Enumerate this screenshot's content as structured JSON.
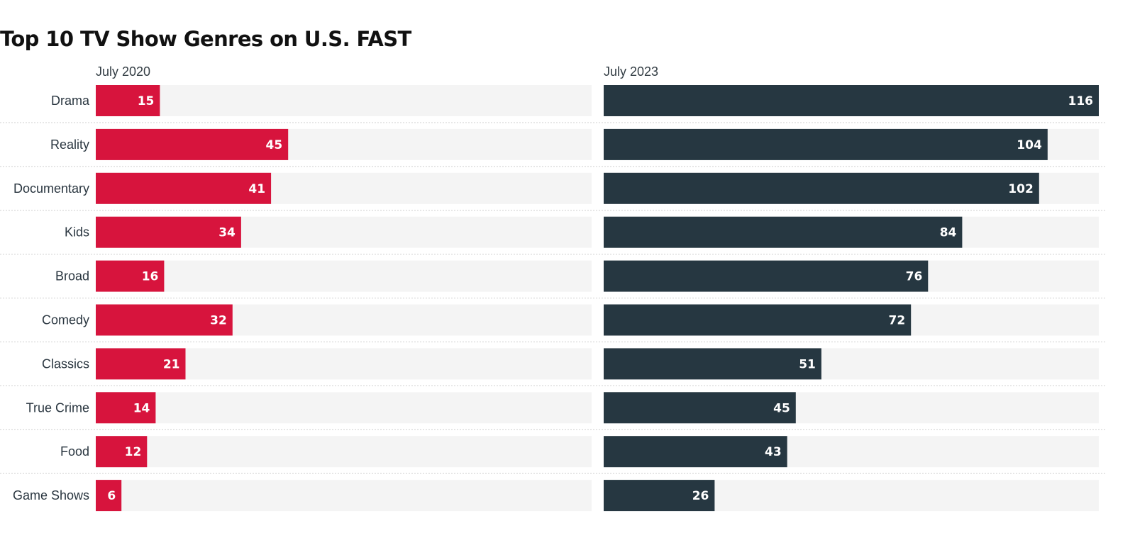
{
  "chart_data": {
    "type": "bar",
    "orientation": "horizontal",
    "title": "Top 10 TV Show Genres on U.S. FAST",
    "categories": [
      "Drama",
      "Reality",
      "Documentary",
      "Kids",
      "Broad",
      "Comedy",
      "Classics",
      "True Crime",
      "Food",
      "Game Shows"
    ],
    "series": [
      {
        "name": "July 2020",
        "color": "#d7143d",
        "values": [
          15,
          45,
          41,
          34,
          16,
          32,
          21,
          14,
          12,
          6
        ]
      },
      {
        "name": "July 2023",
        "color": "#263741",
        "values": [
          116,
          104,
          102,
          84,
          76,
          72,
          51,
          45,
          43,
          26
        ]
      }
    ],
    "xlim": [
      0,
      116
    ],
    "track_color": "#f4f4f4",
    "separator_color": "#cfcfcf",
    "data_labels": true,
    "grid": false,
    "legend": "none"
  }
}
